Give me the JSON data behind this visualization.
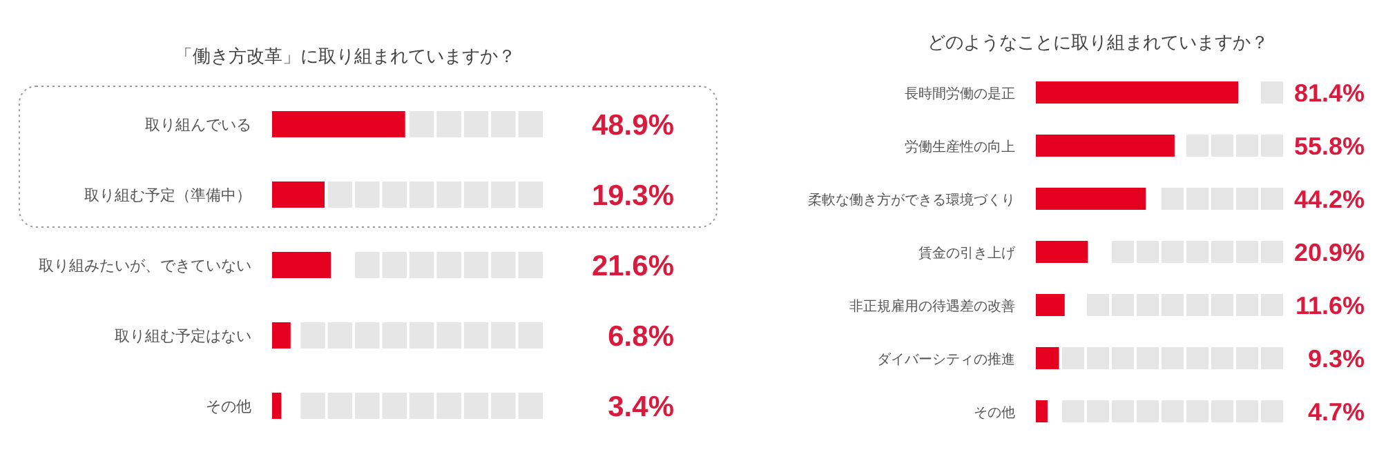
{
  "chart_data": [
    {
      "type": "bar",
      "orientation": "horizontal",
      "title": "「働き方改革」に取り組まれていますか？",
      "categories": [
        "取り組んでいる",
        "取り組む予定（準備中）",
        "取り組みたいが、できていない",
        "取り組む予定はない",
        "その他"
      ],
      "values": [
        48.9,
        19.3,
        21.6,
        6.8,
        3.4
      ],
      "value_labels": [
        "48.9%",
        "19.3%",
        "21.6%",
        "6.8%",
        "3.4%"
      ],
      "color": "#e60020",
      "xlim": [
        0,
        100
      ],
      "tick_labels": false
    },
    {
      "type": "bar",
      "orientation": "horizontal",
      "title": "どのようなことに取り組まれていますか？",
      "categories": [
        "長時間労働の是正",
        "労働生産性の向上",
        "柔軟な働き方ができる環境づくり",
        "賃金の引き上げ",
        "非正規雇用の待遇差の改善",
        "ダイバーシティの推進",
        "その他"
      ],
      "values": [
        81.4,
        55.8,
        44.2,
        20.9,
        11.6,
        9.3,
        4.7
      ],
      "value_labels": [
        "81.4%",
        "55.8%",
        "44.2%",
        "20.9%",
        "11.6%",
        "9.3%",
        "4.7%"
      ],
      "color": "#e60020",
      "xlim": [
        0,
        100
      ],
      "tick_labels": false
    }
  ]
}
